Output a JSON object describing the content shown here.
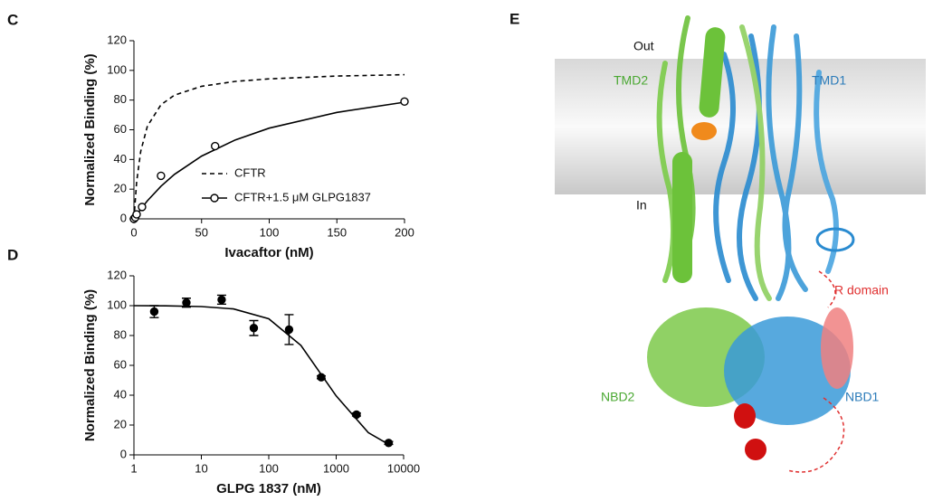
{
  "chart_data": [
    {
      "type": "scatter",
      "panel": "C",
      "x_label": "Ivacaftor (nM)",
      "y_label": "Normalized Binding (%)",
      "xlim": [
        0,
        200
      ],
      "xticks": [
        0,
        50,
        100,
        150,
        200
      ],
      "ylim": [
        0,
        120
      ],
      "yticks": [
        0,
        20,
        40,
        60,
        80,
        100,
        120
      ],
      "log_x": false,
      "legend": "lower-right",
      "series": [
        {
          "name": "CFTR",
          "color": "#000000",
          "line_style": "dashed",
          "marker": "none",
          "x": [
            0,
            2,
            5,
            10,
            20,
            30,
            50,
            75,
            100,
            150,
            200
          ],
          "values": [
            0,
            25,
            45.5,
            62.5,
            76.9,
            83.3,
            89.3,
            92.6,
            94.3,
            96.2,
            97.1
          ]
        },
        {
          "name": "CFTR+1.5 μM GLPG1837",
          "color": "#000000",
          "line_style": "solid",
          "marker": "open-circle",
          "x": [
            0,
            1,
            2,
            6,
            20,
            60,
            200
          ],
          "values": [
            0,
            1,
            3,
            8,
            29,
            49,
            79
          ],
          "fit_x": [
            0,
            2,
            5,
            10,
            20,
            30,
            50,
            75,
            100,
            150,
            200
          ],
          "fit_values": [
            0,
            2.7,
            6.5,
            12.2,
            22,
            30,
            42.3,
            53.2,
            61.1,
            71.7,
            78.6
          ]
        }
      ]
    },
    {
      "type": "scatter",
      "panel": "D",
      "x_label": "GLPG 1837 (nM)",
      "y_label": "Normalized Binding (%)",
      "xlim": [
        1,
        10000
      ],
      "xticks": [
        1,
        10,
        100,
        1000,
        10000
      ],
      "ylim": [
        0,
        120
      ],
      "yticks": [
        0,
        20,
        40,
        60,
        80,
        100,
        120
      ],
      "log_x": true,
      "series": [
        {
          "color": "#000000",
          "line_style": "solid",
          "marker": "filled-circle",
          "x": [
            2,
            6,
            20,
            60,
            200,
            600,
            2000,
            6000
          ],
          "values": [
            96,
            102,
            104,
            85,
            84,
            52,
            27,
            8
          ],
          "errors": [
            4,
            3,
            3,
            5,
            10,
            1,
            1,
            1
          ],
          "fit_x": [
            1,
            3,
            10,
            30,
            100,
            300,
            1000,
            3000,
            6000
          ],
          "fit_values": [
            100,
            99.9,
            99.4,
            97.8,
            91.2,
            73.4,
            39.5,
            14.9,
            7.0
          ]
        }
      ]
    }
  ],
  "structure": {
    "panel": "E",
    "out": "Out",
    "in": "In",
    "tmd2": "TMD2",
    "tmd1": "TMD1",
    "r_domain": "R domain",
    "nbd2": "NBD2",
    "nbd1": "NBD1"
  }
}
